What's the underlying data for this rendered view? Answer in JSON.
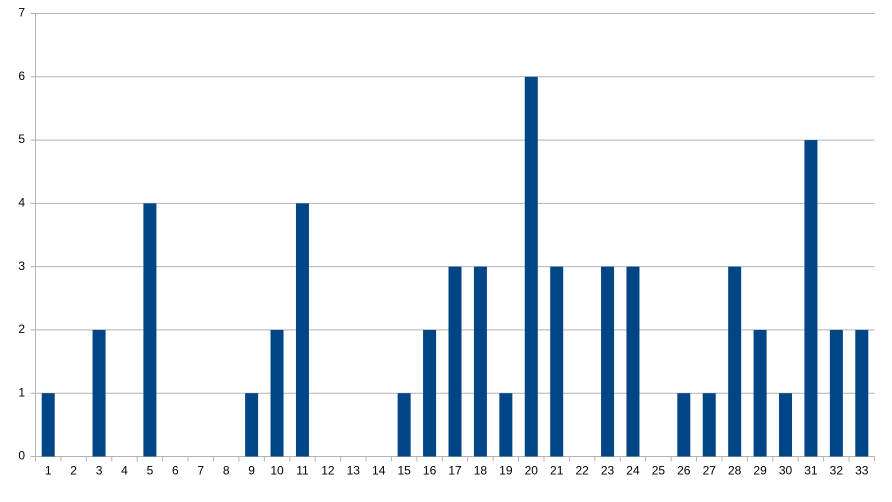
{
  "chart_data": {
    "type": "bar",
    "categories": [
      "1",
      "2",
      "3",
      "4",
      "5",
      "6",
      "7",
      "8",
      "9",
      "10",
      "11",
      "12",
      "13",
      "14",
      "15",
      "16",
      "17",
      "18",
      "19",
      "20",
      "21",
      "22",
      "23",
      "24",
      "25",
      "26",
      "27",
      "28",
      "29",
      "30",
      "31",
      "32",
      "33"
    ],
    "values": [
      1,
      0,
      2,
      0,
      4,
      0,
      0,
      0,
      1,
      2,
      4,
      0,
      0,
      0,
      1,
      2,
      3,
      3,
      1,
      6,
      3,
      0,
      3,
      3,
      0,
      1,
      1,
      3,
      2,
      1,
      5,
      2,
      2
    ],
    "color": "#004586",
    "ylim": [
      0,
      7
    ],
    "yticks": [
      0,
      1,
      2,
      3,
      4,
      5,
      6,
      7
    ],
    "grid": true
  }
}
